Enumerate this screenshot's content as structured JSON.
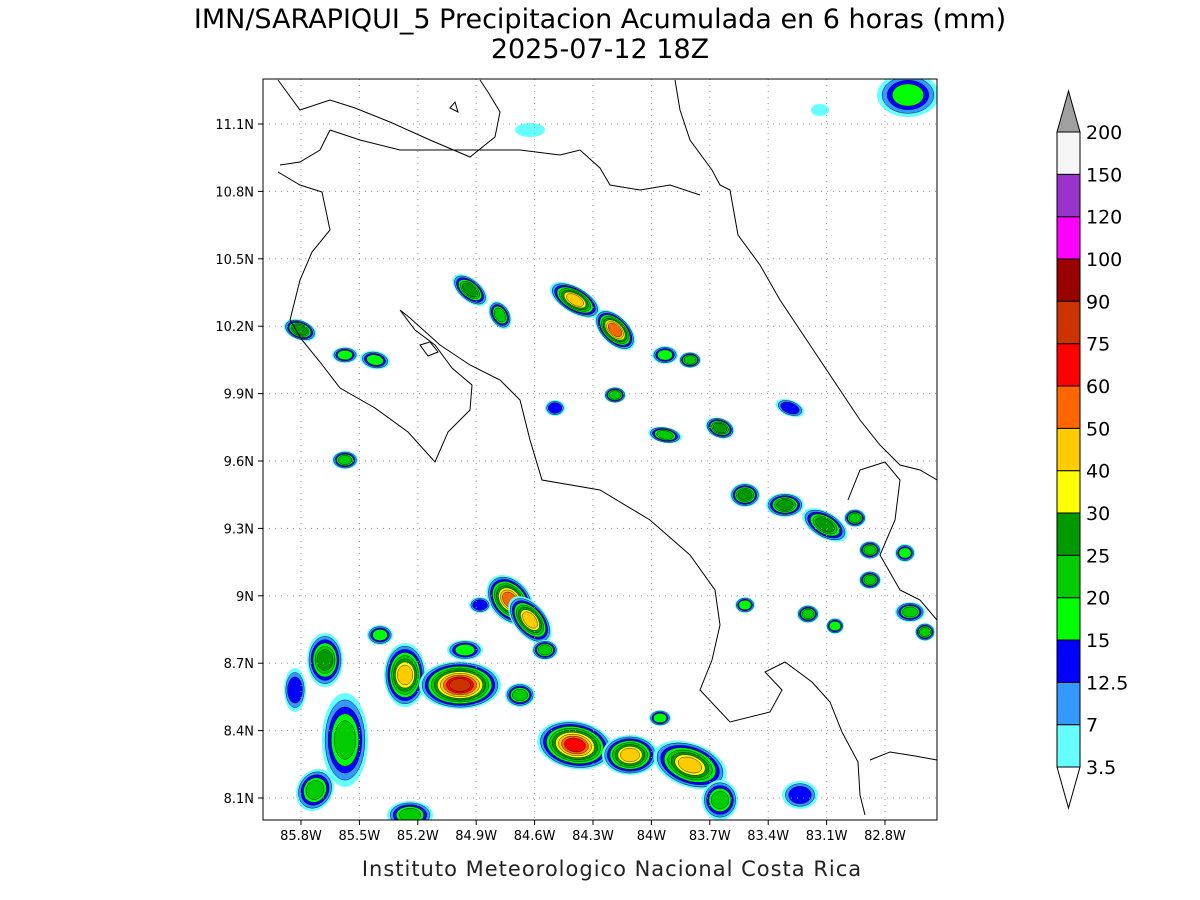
{
  "title": "IMN/SARAPIQUI_5 Precipitacion Acumulada en 6 horas (mm)",
  "subtitle": "2025-07-12 18Z",
  "lat_labels": [
    "11.1N",
    "10.8N",
    "10.5N",
    "10.2N",
    "9.9N",
    "9.6N",
    "9.3N",
    "9N",
    "8.7N",
    "8.4N",
    "8.1N"
  ],
  "lon_labels": [
    "85.8W",
    "85.5W",
    "85.2W",
    "84.9W",
    "84.6W",
    "84.3W",
    "84W",
    "83.7W",
    "83.4W",
    "83.1W",
    "82.8W"
  ],
  "colorbar": {
    "labels": [
      "3.5",
      "7",
      "12.5",
      "15",
      "20",
      "25",
      "30",
      "40",
      "50",
      "60",
      "75",
      "90",
      "100",
      "120",
      "150",
      "200"
    ],
    "colors": [
      "#66ffff",
      "#3399ff",
      "#0000ff",
      "#00ff00",
      "#00cc00",
      "#009900",
      "#ffff00",
      "#ffcc00",
      "#ff6600",
      "#ff0000",
      "#cc3300",
      "#990000",
      "#ff00ff",
      "#9933cc",
      "#f5f5f5"
    ],
    "below_color": "#ffffff",
    "above_color": "#a0a0a0"
  },
  "footer": "Instituto Meteorologico Nacional Costa Rica"
}
